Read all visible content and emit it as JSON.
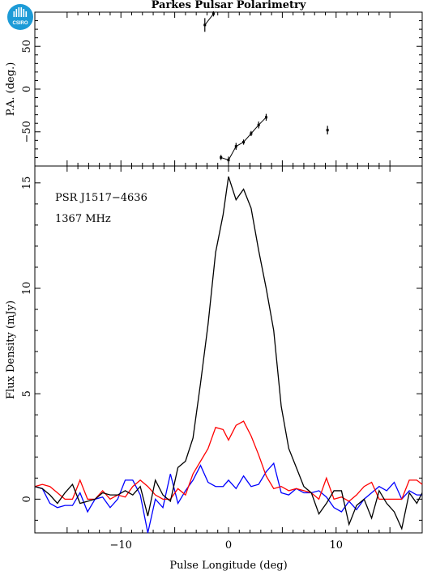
{
  "title": "Parkes Pulsar Polarimetry",
  "logo_text": "CSIRO",
  "colors": {
    "total": "#000000",
    "linear": "#ff0000",
    "circular": "#0000ff",
    "logo": "#1c9bd7"
  },
  "chart_data": [
    {
      "type": "scatter",
      "ylabel": "P.A. (deg.)",
      "xlim": [
        -18,
        18
      ],
      "ylim": [
        -90,
        90
      ],
      "yticks": [
        -50,
        0,
        50
      ],
      "yticklabels": [
        "−50",
        "0",
        "50"
      ],
      "points": [
        {
          "x": -2.2,
          "y": 75,
          "err": 8
        },
        {
          "x": -1.4,
          "y": 88,
          "err": 3
        },
        {
          "x": -0.7,
          "y": -80,
          "err": 3
        },
        {
          "x": 0.0,
          "y": -83,
          "err": 4
        },
        {
          "x": 0.7,
          "y": -67,
          "err": 4
        },
        {
          "x": 1.4,
          "y": -62,
          "err": 3
        },
        {
          "x": 2.1,
          "y": -52,
          "err": 3
        },
        {
          "x": 2.8,
          "y": -42,
          "err": 4
        },
        {
          "x": 3.5,
          "y": -33,
          "err": 4
        },
        {
          "x": 9.2,
          "y": -48,
          "err": 5
        }
      ]
    },
    {
      "type": "line",
      "annotations": [
        "PSR J1517−4636",
        "1367 MHz"
      ],
      "xlabel": "Pulse Longitude (deg)",
      "ylabel": "Flux Density (mJy)",
      "xlim": [
        -18,
        18
      ],
      "ylim": [
        -1.6,
        15.8
      ],
      "xticks": [
        -10,
        0,
        10
      ],
      "xticklabels": [
        "−10",
        "0",
        "10"
      ],
      "yticks": [
        0,
        5,
        10,
        15
      ],
      "yticklabels": [
        "0",
        "5",
        "10",
        "15"
      ],
      "x": [
        -18.0,
        -17.3,
        -16.6,
        -15.9,
        -15.2,
        -14.5,
        -13.8,
        -13.1,
        -12.4,
        -11.7,
        -11.0,
        -10.3,
        -9.6,
        -8.9,
        -8.2,
        -7.5,
        -6.8,
        -6.1,
        -5.4,
        -4.7,
        -4.0,
        -3.3,
        -2.6,
        -1.9,
        -1.2,
        -0.5,
        0.0,
        0.7,
        1.4,
        2.1,
        2.8,
        3.5,
        4.2,
        4.9,
        5.6,
        6.3,
        7.0,
        7.7,
        8.4,
        9.1,
        9.8,
        10.5,
        11.2,
        11.9,
        12.6,
        13.3,
        14.0,
        14.7,
        15.4,
        16.1,
        16.8,
        17.5,
        18.0
      ],
      "series": [
        {
          "values": [
            0.6,
            0.5,
            0.2,
            -0.2,
            0.3,
            0.7,
            -0.2,
            -0.1,
            0.0,
            0.3,
            0.2,
            0.2,
            0.4,
            0.2,
            0.6,
            -0.8,
            0.9,
            0.2,
            -0.1,
            1.5,
            1.8,
            2.9,
            5.5,
            8.3,
            11.7,
            13.5,
            15.3,
            14.2,
            14.7,
            13.8,
            11.8,
            10.0,
            8.0,
            4.4,
            2.4,
            1.5,
            0.6,
            0.3,
            -0.7,
            -0.2,
            0.4,
            0.4,
            -1.2,
            -0.3,
            0.0,
            -0.9,
            0.4,
            -0.2,
            -0.6,
            -1.4,
            0.3,
            -0.2,
            0.3
          ]
        },
        {
          "values": [
            0.6,
            0.7,
            0.6,
            0.3,
            0.0,
            0.0,
            0.9,
            0.0,
            0.0,
            0.4,
            0.0,
            0.2,
            0.1,
            0.6,
            0.9,
            0.6,
            0.2,
            0.0,
            0.0,
            0.5,
            0.2,
            1.2,
            1.8,
            2.4,
            3.4,
            3.3,
            2.8,
            3.5,
            3.7,
            3.0,
            2.1,
            1.1,
            0.5,
            0.6,
            0.4,
            0.5,
            0.4,
            0.3,
            0.0,
            1.0,
            0.0,
            0.1,
            -0.1,
            0.2,
            0.6,
            0.8,
            0.0,
            0.0,
            0.0,
            0.0,
            0.9,
            0.9,
            0.7
          ]
        },
        {
          "values": [
            0.6,
            0.5,
            -0.2,
            -0.4,
            -0.3,
            -0.3,
            0.3,
            -0.6,
            0.0,
            0.1,
            -0.4,
            0.0,
            0.9,
            0.9,
            0.2,
            -1.6,
            0.0,
            -0.4,
            1.2,
            -0.2,
            0.4,
            0.9,
            1.6,
            0.8,
            0.6,
            0.6,
            0.9,
            0.5,
            1.1,
            0.6,
            0.7,
            1.3,
            1.7,
            0.3,
            0.2,
            0.5,
            0.3,
            0.3,
            0.4,
            0.1,
            -0.4,
            -0.6,
            -0.1,
            -0.5,
            0.0,
            0.3,
            0.6,
            0.4,
            0.8,
            0.0,
            0.4,
            0.2,
            0.2
          ]
        }
      ]
    }
  ]
}
